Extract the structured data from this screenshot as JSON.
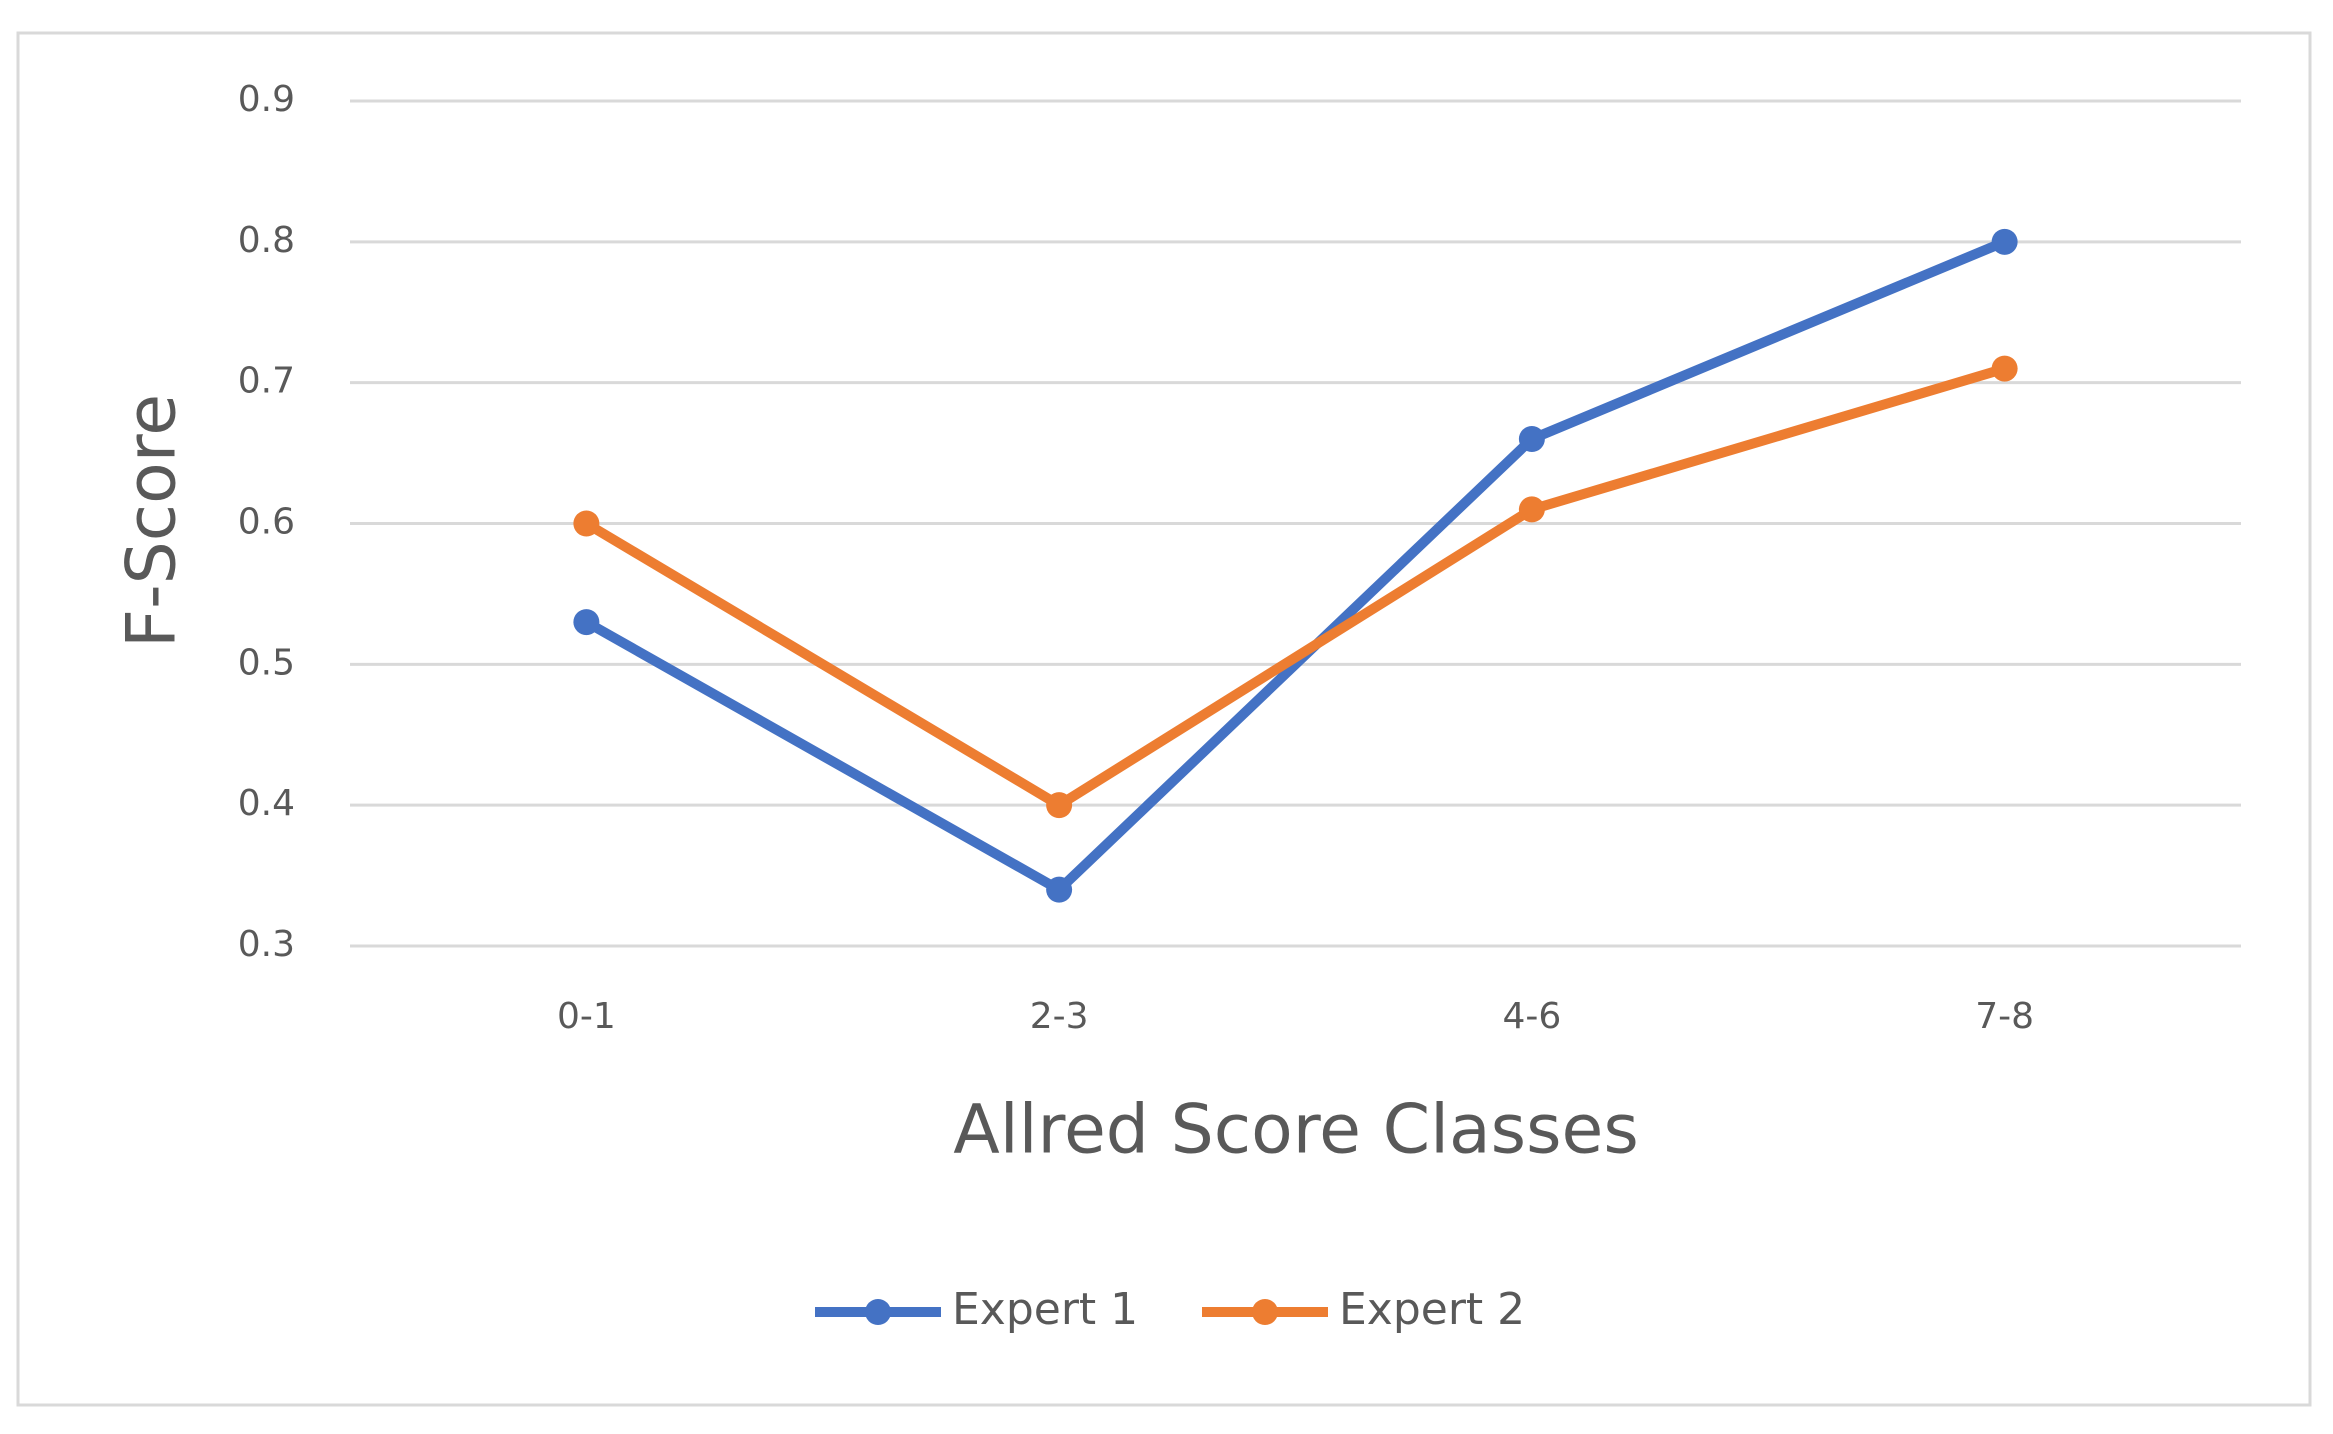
{
  "chart_data": {
    "type": "line",
    "x_label": "Allred Score Classes",
    "y_label": "F-Score",
    "categories": [
      "0-1",
      "2-3",
      "4-6",
      "7-8"
    ],
    "series": [
      {
        "name": "Expert 1",
        "color": "#4472c4",
        "values": [
          0.53,
          0.34,
          0.66,
          0.8
        ]
      },
      {
        "name": "Expert 2",
        "color": "#ed7d31",
        "values": [
          0.6,
          0.4,
          0.61,
          0.71
        ]
      }
    ],
    "ylim": [
      0.3,
      0.9
    ],
    "yticks": [
      0.3,
      0.4,
      0.5,
      0.6,
      0.7,
      0.8,
      0.9
    ],
    "grid": true,
    "legend": "bottom"
  }
}
